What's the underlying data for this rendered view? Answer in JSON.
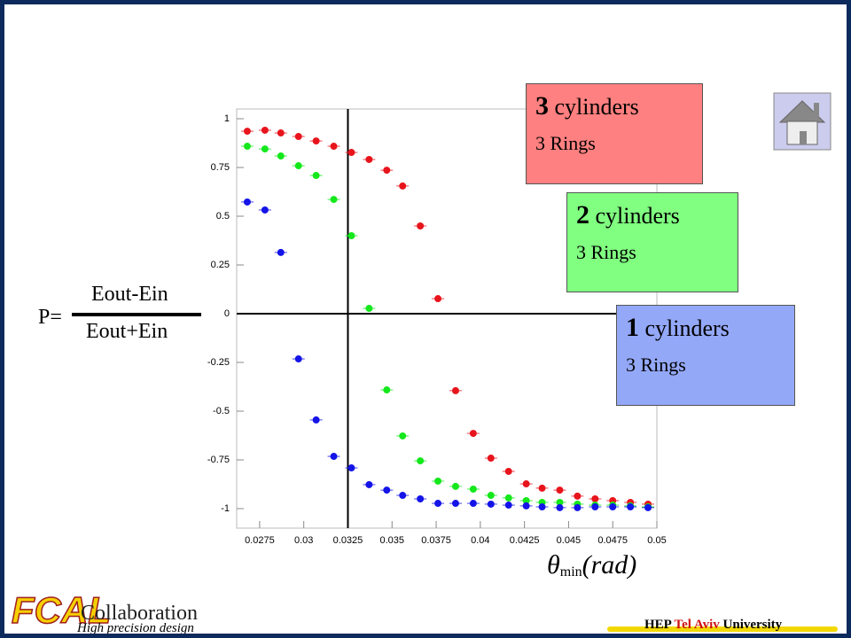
{
  "chart_data": {
    "type": "scatter",
    "x": [
      0.0268,
      0.0278,
      0.0287,
      0.0297,
      0.0307,
      0.0317,
      0.0327,
      0.0337,
      0.0347,
      0.0356,
      0.0366,
      0.0376,
      0.0386,
      0.0396,
      0.0406,
      0.0416,
      0.0426,
      0.0435,
      0.0445,
      0.0455,
      0.0465,
      0.0475,
      0.0485,
      0.0495
    ],
    "series": [
      {
        "color": "#e8141c",
        "values": [
          0.936,
          0.941,
          0.927,
          0.909,
          0.886,
          0.859,
          0.827,
          0.791,
          0.736,
          0.655,
          0.45,
          0.077,
          -0.395,
          -0.614,
          -0.741,
          -0.809,
          -0.873,
          -0.895,
          -0.905,
          -0.936,
          -0.95,
          -0.959,
          -0.968,
          -0.977
        ]
      },
      {
        "color": "#14e81c",
        "values": [
          0.859,
          0.845,
          0.809,
          0.759,
          0.709,
          0.586,
          0.4,
          0.027,
          -0.391,
          -0.627,
          -0.755,
          -0.859,
          -0.886,
          -0.9,
          -0.932,
          -0.945,
          -0.959,
          -0.968,
          -0.968,
          -0.977,
          -0.982,
          -0.982,
          -0.986,
          -0.991
        ]
      },
      {
        "color": "#1414e8",
        "values": [
          0.573,
          0.532,
          0.314,
          -0.232,
          -0.545,
          -0.732,
          -0.791,
          -0.877,
          -0.905,
          -0.932,
          -0.95,
          -0.973,
          -0.973,
          -0.973,
          -0.977,
          -0.982,
          -0.986,
          -0.991,
          -0.995,
          -0.995,
          -0.991,
          -0.991,
          -0.991,
          -0.995
        ]
      }
    ],
    "xlim": [
      0.0262,
      0.05
    ],
    "ylim": [
      -1.1,
      1.05
    ],
    "xticks": [
      0.0275,
      0.03,
      0.0325,
      0.035,
      0.0375,
      0.04,
      0.0425,
      0.045,
      0.0475,
      0.05
    ],
    "yticks": [
      -1,
      -0.75,
      -0.5,
      -0.25,
      0,
      0.25,
      0.5,
      0.75,
      1
    ],
    "ref_x": 0.0325,
    "ref_y": 0,
    "x_label": {
      "symbol": "θ",
      "subscript": "min",
      "unit": "(rad)"
    }
  },
  "formula": {
    "lhs": "P=",
    "numerator": "Eout-Ein",
    "denominator": "Eout+Ein"
  },
  "boxes": [
    {
      "count": "3",
      "word": "cylinders",
      "rings": "3 Rings",
      "color": "#ff8080"
    },
    {
      "count": "2",
      "word": "cylinders",
      "rings": "3 Rings",
      "color": "#80ff80"
    },
    {
      "count": "1",
      "word": "cylinders",
      "rings": "3 Rings",
      "color": "#94a8f8"
    }
  ],
  "footer": {
    "logo": "FCAL",
    "collab": "Collaboration",
    "tagline": "High precision design",
    "hep": "HEP",
    "city": "Tel Aviv",
    "univ": "University"
  }
}
